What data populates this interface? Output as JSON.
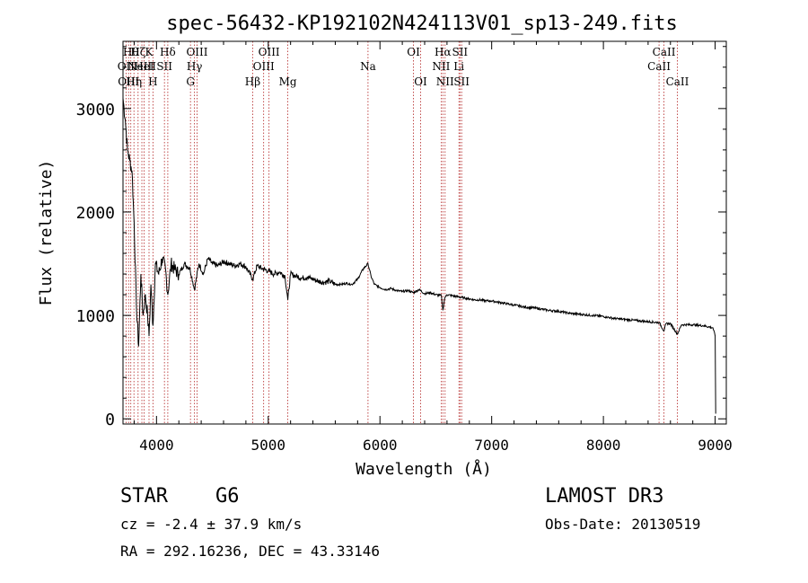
{
  "chart_data": {
    "type": "line",
    "title": "spec-56432-KP192102N424113V01_sp13-249.fits",
    "xlabel": "Wavelength (Å)",
    "ylabel": "Flux (relative)",
    "xlim": [
      3700,
      9100
    ],
    "ylim": [
      -50,
      3650
    ],
    "xticks": [
      4000,
      5000,
      6000,
      7000,
      8000,
      9000
    ],
    "yticks": [
      0,
      1000,
      2000,
      3000
    ],
    "grid": false,
    "series": [
      {
        "name": "spectrum",
        "x": [
          3700,
          3720,
          3740,
          3760,
          3780,
          3800,
          3820,
          3840,
          3860,
          3880,
          3900,
          3920,
          3933,
          3950,
          3968,
          3990,
          4020,
          4050,
          4080,
          4101,
          4130,
          4160,
          4200,
          4250,
          4300,
          4340,
          4380,
          4420,
          4460,
          4500,
          4550,
          4600,
          4650,
          4700,
          4750,
          4800,
          4861,
          4900,
          4950,
          5000,
          5050,
          5100,
          5150,
          5175,
          5200,
          5250,
          5300,
          5350,
          5400,
          5450,
          5500,
          5550,
          5600,
          5650,
          5700,
          5750,
          5800,
          5850,
          5893,
          5920,
          5950,
          6000,
          6050,
          6100,
          6150,
          6200,
          6250,
          6300,
          6350,
          6400,
          6450,
          6500,
          6550,
          6563,
          6580,
          6600,
          6650,
          6700,
          6750,
          6800,
          6850,
          6900,
          6950,
          7000,
          7100,
          7200,
          7300,
          7400,
          7500,
          7600,
          7700,
          7800,
          7900,
          8000,
          8100,
          8200,
          8300,
          8400,
          8500,
          8542,
          8560,
          8600,
          8662,
          8700,
          8800,
          8900,
          8980,
          9000,
          9005
        ],
        "values": [
          3100,
          2900,
          2600,
          2500,
          2400,
          1900,
          1100,
          700,
          1400,
          1000,
          1200,
          1000,
          800,
          1300,
          900,
          1500,
          1400,
          1550,
          1450,
          1200,
          1500,
          1450,
          1400,
          1500,
          1450,
          1250,
          1500,
          1400,
          1550,
          1500,
          1480,
          1520,
          1500,
          1480,
          1500,
          1470,
          1350,
          1480,
          1450,
          1430,
          1400,
          1420,
          1380,
          1150,
          1400,
          1380,
          1360,
          1370,
          1350,
          1330,
          1320,
          1330,
          1300,
          1300,
          1310,
          1300,
          1350,
          1450,
          1500,
          1380,
          1300,
          1270,
          1250,
          1260,
          1240,
          1230,
          1240,
          1220,
          1250,
          1210,
          1220,
          1200,
          1190,
          1050,
          1170,
          1200,
          1190,
          1180,
          1170,
          1160,
          1150,
          1150,
          1140,
          1140,
          1120,
          1100,
          1080,
          1070,
          1050,
          1040,
          1020,
          1010,
          1000,
          990,
          970,
          960,
          950,
          940,
          930,
          850,
          920,
          920,
          820,
          910,
          910,
          900,
          880,
          800,
          50
        ]
      }
    ],
    "lines": [
      {
        "wavelength": 3727,
        "label": "OII",
        "row": 2
      },
      {
        "wavelength": 3750,
        "label": "OIII",
        "row": 3
      },
      {
        "wavelength": 3770,
        "label": "Hθ",
        "row": 1
      },
      {
        "wavelength": 3798,
        "label": "Hη",
        "row": 3
      },
      {
        "wavelength": 3835,
        "label": "Hζ",
        "row": 1
      },
      {
        "wavelength": 3869,
        "label": "NeIII",
        "row": 2
      },
      {
        "wavelength": 3889,
        "label": "HeI",
        "row": 2
      },
      {
        "wavelength": 3933,
        "label": "K",
        "row": 1
      },
      {
        "wavelength": 3968,
        "label": "H",
        "row": 3
      },
      {
        "wavelength": 4071,
        "label": "SII",
        "row": 2
      },
      {
        "wavelength": 4101,
        "label": "Hδ",
        "row": 1
      },
      {
        "wavelength": 4304,
        "label": "G",
        "row": 3
      },
      {
        "wavelength": 4340,
        "label": "Hγ",
        "row": 2
      },
      {
        "wavelength": 4363,
        "label": "OIII",
        "row": 1
      },
      {
        "wavelength": 4861,
        "label": "Hβ",
        "row": 3
      },
      {
        "wavelength": 4959,
        "label": "OIII",
        "row": 2
      },
      {
        "wavelength": 5007,
        "label": "OIII",
        "row": 1
      },
      {
        "wavelength": 5175,
        "label": "Mg",
        "row": 3
      },
      {
        "wavelength": 5893,
        "label": "Na",
        "row": 2
      },
      {
        "wavelength": 6300,
        "label": "OI",
        "row": 1
      },
      {
        "wavelength": 6364,
        "label": "OI",
        "row": 3
      },
      {
        "wavelength": 6548,
        "label": "NII",
        "row": 2
      },
      {
        "wavelength": 6563,
        "label": "Hα",
        "row": 1
      },
      {
        "wavelength": 6583,
        "label": "NII",
        "row": 3
      },
      {
        "wavelength": 6707,
        "label": "Li",
        "row": 2
      },
      {
        "wavelength": 6716,
        "label": "SII",
        "row": 1
      },
      {
        "wavelength": 6731,
        "label": "SII",
        "row": 3
      },
      {
        "wavelength": 8498,
        "label": "CaII",
        "row": 2
      },
      {
        "wavelength": 8542,
        "label": "CaII",
        "row": 1
      },
      {
        "wavelength": 8662,
        "label": "CaII",
        "row": 3
      }
    ]
  },
  "info": {
    "class": "STAR",
    "subclass": "G6",
    "survey": "LAMOST DR3",
    "cz": "cz = -2.4 ± 37.9 km/s",
    "obs_date": "Obs-Date: 20130519",
    "coords": "RA = 292.16236, DEC =  43.33146"
  },
  "colors": {
    "axis": "#000000",
    "line": "#000000",
    "marker": "#b22222",
    "background": "#ffffff"
  }
}
